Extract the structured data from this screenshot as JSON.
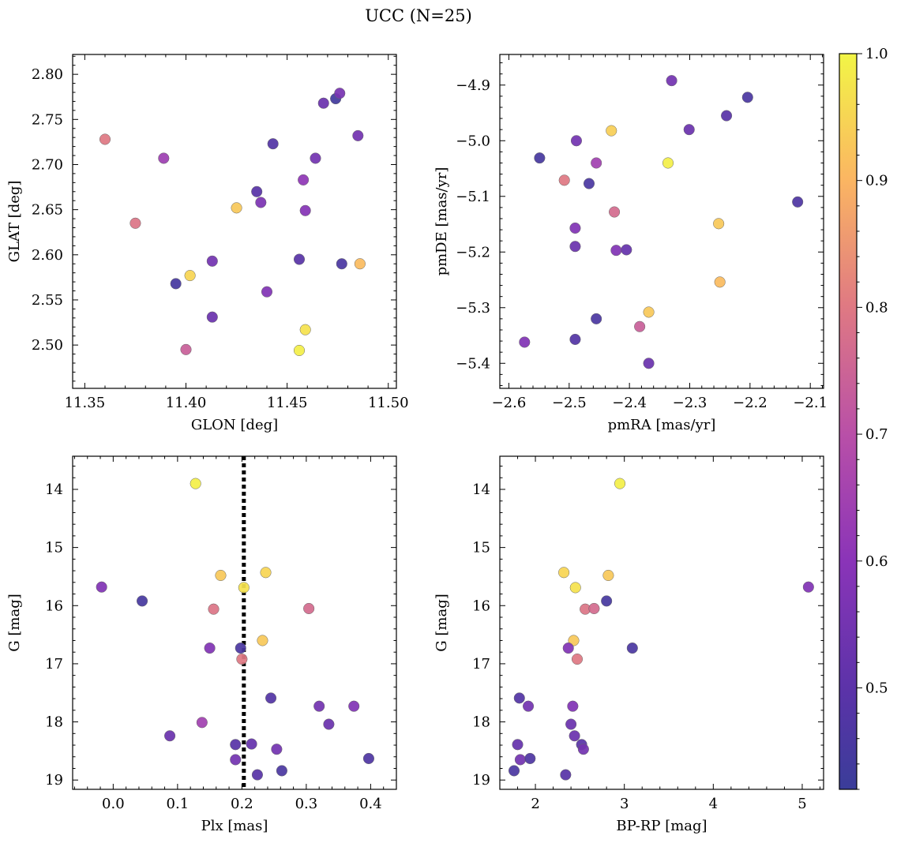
{
  "figure": {
    "title": "UCC (N=25)"
  },
  "colorbar": {
    "min": 0.42,
    "max": 1.0,
    "ticks": [
      0.5,
      0.6,
      0.7,
      0.8,
      0.9,
      1.0
    ],
    "tick_labels": [
      "0.5",
      "0.6",
      "0.7",
      "0.8",
      "0.9",
      "1.0"
    ],
    "colormap": "plasma"
  },
  "chart_data": [
    {
      "type": "scatter",
      "xlabel": "GLON [deg]",
      "ylabel": "GLAT [deg]",
      "xlim": [
        11.344,
        11.504
      ],
      "ylim": [
        2.452,
        2.822
      ],
      "y_inverted": false,
      "xticks": [
        11.35,
        11.4,
        11.45,
        11.5
      ],
      "xtick_labels": [
        "11.35",
        "11.40",
        "11.45",
        "11.50"
      ],
      "yticks": [
        2.5,
        2.55,
        2.6,
        2.65,
        2.7,
        2.75,
        2.8
      ],
      "ytick_labels": [
        "2.50",
        "2.55",
        "2.60",
        "2.65",
        "2.70",
        "2.75",
        "2.80"
      ],
      "points": [
        {
          "x": 11.36,
          "y": 2.728,
          "c": 0.8
        },
        {
          "x": 11.389,
          "y": 2.707,
          "c": 0.64
        },
        {
          "x": 11.375,
          "y": 2.635,
          "c": 0.79
        },
        {
          "x": 11.395,
          "y": 2.568,
          "c": 0.45
        },
        {
          "x": 11.402,
          "y": 2.577,
          "c": 0.95
        },
        {
          "x": 11.4,
          "y": 2.495,
          "c": 0.74
        },
        {
          "x": 11.413,
          "y": 2.593,
          "c": 0.55
        },
        {
          "x": 11.413,
          "y": 2.531,
          "c": 0.53
        },
        {
          "x": 11.425,
          "y": 2.652,
          "c": 0.93
        },
        {
          "x": 11.435,
          "y": 2.67,
          "c": 0.49
        },
        {
          "x": 11.437,
          "y": 2.658,
          "c": 0.57
        },
        {
          "x": 11.44,
          "y": 2.559,
          "c": 0.58
        },
        {
          "x": 11.443,
          "y": 2.723,
          "c": 0.48
        },
        {
          "x": 11.456,
          "y": 2.595,
          "c": 0.49
        },
        {
          "x": 11.456,
          "y": 2.494,
          "c": 0.99
        },
        {
          "x": 11.458,
          "y": 2.683,
          "c": 0.61
        },
        {
          "x": 11.459,
          "y": 2.649,
          "c": 0.59
        },
        {
          "x": 11.459,
          "y": 2.517,
          "c": 0.97
        },
        {
          "x": 11.464,
          "y": 2.707,
          "c": 0.55
        },
        {
          "x": 11.468,
          "y": 2.768,
          "c": 0.53
        },
        {
          "x": 11.474,
          "y": 2.773,
          "c": 0.44
        },
        {
          "x": 11.476,
          "y": 2.779,
          "c": 0.56
        },
        {
          "x": 11.477,
          "y": 2.59,
          "c": 0.46
        },
        {
          "x": 11.485,
          "y": 2.732,
          "c": 0.55
        },
        {
          "x": 11.486,
          "y": 2.59,
          "c": 0.91
        }
      ]
    },
    {
      "type": "scatter",
      "xlabel": "pmRA [mas/yr]",
      "ylabel": "pmDE [mas/yr]",
      "xlim": [
        -2.615,
        -2.078
      ],
      "ylim": [
        -5.445,
        -4.845
      ],
      "y_inverted": false,
      "xticks": [
        -2.6,
        -2.5,
        -2.4,
        -2.3,
        -2.2,
        -2.1
      ],
      "xtick_labels": [
        "−2.6",
        "−2.5",
        "−2.4",
        "−2.3",
        "−2.2",
        "−2.1"
      ],
      "yticks": [
        -5.4,
        -5.3,
        -5.2,
        -5.1,
        -5.0,
        -4.9
      ],
      "ytick_labels": [
        "−5.4",
        "−5.3",
        "−5.2",
        "−5.1",
        "−5.0",
        "−4.9"
      ],
      "points": [
        {
          "x": -2.574,
          "y": -5.362,
          "c": 0.58
        },
        {
          "x": -2.549,
          "y": -5.031,
          "c": 0.45
        },
        {
          "x": -2.508,
          "y": -5.071,
          "c": 0.8
        },
        {
          "x": -2.488,
          "y": -5.0,
          "c": 0.55
        },
        {
          "x": -2.49,
          "y": -5.157,
          "c": 0.58
        },
        {
          "x": -2.49,
          "y": -5.19,
          "c": 0.53
        },
        {
          "x": -2.49,
          "y": -5.357,
          "c": 0.48
        },
        {
          "x": -2.467,
          "y": -5.077,
          "c": 0.46
        },
        {
          "x": -2.455,
          "y": -5.04,
          "c": 0.65
        },
        {
          "x": -2.455,
          "y": -5.32,
          "c": 0.46
        },
        {
          "x": -2.43,
          "y": -4.982,
          "c": 0.94
        },
        {
          "x": -2.425,
          "y": -5.128,
          "c": 0.77
        },
        {
          "x": -2.422,
          "y": -5.197,
          "c": 0.58
        },
        {
          "x": -2.405,
          "y": -5.196,
          "c": 0.52
        },
        {
          "x": -2.383,
          "y": -5.334,
          "c": 0.74
        },
        {
          "x": -2.368,
          "y": -5.308,
          "c": 0.93
        },
        {
          "x": -2.368,
          "y": -5.4,
          "c": 0.53
        },
        {
          "x": -2.336,
          "y": -5.04,
          "c": 0.99
        },
        {
          "x": -2.33,
          "y": -4.892,
          "c": 0.55
        },
        {
          "x": -2.301,
          "y": -4.98,
          "c": 0.53
        },
        {
          "x": -2.252,
          "y": -5.149,
          "c": 0.93
        },
        {
          "x": -2.25,
          "y": -5.254,
          "c": 0.91
        },
        {
          "x": -2.239,
          "y": -4.955,
          "c": 0.49
        },
        {
          "x": -2.204,
          "y": -4.922,
          "c": 0.46
        },
        {
          "x": -2.121,
          "y": -5.11,
          "c": 0.47
        }
      ]
    },
    {
      "type": "scatter",
      "xlabel": "Plx [mas]",
      "ylabel": "G [mag]",
      "xlim": [
        -0.063,
        0.44
      ],
      "ylim": [
        19.16,
        13.43
      ],
      "y_inverted": true,
      "xticks": [
        0.0,
        0.1,
        0.2,
        0.3,
        0.4
      ],
      "xtick_labels": [
        "0.0",
        "0.1",
        "0.2",
        "0.3",
        "0.4"
      ],
      "yticks": [
        14,
        15,
        16,
        17,
        18,
        19
      ],
      "ytick_labels": [
        "14",
        "15",
        "16",
        "17",
        "18",
        "19"
      ],
      "vline": 0.203,
      "points": [
        {
          "x": 0.128,
          "y": 13.9,
          "c": 0.99
        },
        {
          "x": 0.167,
          "y": 15.48,
          "c": 0.93
        },
        {
          "x": 0.237,
          "y": 15.43,
          "c": 0.95
        },
        {
          "x": 0.203,
          "y": 15.69,
          "c": 0.97
        },
        {
          "x": -0.018,
          "y": 15.68,
          "c": 0.58
        },
        {
          "x": 0.045,
          "y": 15.92,
          "c": 0.45
        },
        {
          "x": 0.156,
          "y": 16.06,
          "c": 0.79
        },
        {
          "x": 0.304,
          "y": 16.05,
          "c": 0.77
        },
        {
          "x": 0.232,
          "y": 16.6,
          "c": 0.93
        },
        {
          "x": 0.15,
          "y": 16.73,
          "c": 0.58
        },
        {
          "x": 0.198,
          "y": 16.73,
          "c": 0.46
        },
        {
          "x": 0.2,
          "y": 16.92,
          "c": 0.8
        },
        {
          "x": 0.245,
          "y": 17.59,
          "c": 0.48
        },
        {
          "x": 0.32,
          "y": 17.73,
          "c": 0.55
        },
        {
          "x": 0.374,
          "y": 17.73,
          "c": 0.58
        },
        {
          "x": 0.138,
          "y": 18.01,
          "c": 0.65
        },
        {
          "x": 0.335,
          "y": 18.04,
          "c": 0.53
        },
        {
          "x": 0.088,
          "y": 18.24,
          "c": 0.53
        },
        {
          "x": 0.19,
          "y": 18.39,
          "c": 0.49
        },
        {
          "x": 0.215,
          "y": 18.38,
          "c": 0.52
        },
        {
          "x": 0.254,
          "y": 18.47,
          "c": 0.55
        },
        {
          "x": 0.19,
          "y": 18.65,
          "c": 0.55
        },
        {
          "x": 0.397,
          "y": 18.63,
          "c": 0.47
        },
        {
          "x": 0.262,
          "y": 18.84,
          "c": 0.46
        },
        {
          "x": 0.224,
          "y": 18.91,
          "c": 0.49
        }
      ]
    },
    {
      "type": "scatter",
      "xlabel": "BP-RP [mag]",
      "ylabel": "G [mag]",
      "xlim": [
        1.6,
        5.24
      ],
      "ylim": [
        19.16,
        13.43
      ],
      "y_inverted": true,
      "xticks": [
        2,
        3,
        4,
        5
      ],
      "xtick_labels": [
        "2",
        "3",
        "4",
        "5"
      ],
      "yticks": [
        14,
        15,
        16,
        17,
        18,
        19
      ],
      "ytick_labels": [
        "14",
        "15",
        "16",
        "17",
        "18",
        "19"
      ],
      "points": [
        {
          "x": 2.95,
          "y": 13.9,
          "c": 0.99
        },
        {
          "x": 2.32,
          "y": 15.43,
          "c": 0.95
        },
        {
          "x": 2.82,
          "y": 15.48,
          "c": 0.93
        },
        {
          "x": 2.45,
          "y": 15.69,
          "c": 0.97
        },
        {
          "x": 5.07,
          "y": 15.68,
          "c": 0.58
        },
        {
          "x": 2.8,
          "y": 15.92,
          "c": 0.45
        },
        {
          "x": 2.56,
          "y": 16.06,
          "c": 0.79
        },
        {
          "x": 2.66,
          "y": 16.05,
          "c": 0.77
        },
        {
          "x": 2.43,
          "y": 16.6,
          "c": 0.93
        },
        {
          "x": 2.37,
          "y": 16.73,
          "c": 0.58
        },
        {
          "x": 3.09,
          "y": 16.73,
          "c": 0.46
        },
        {
          "x": 2.47,
          "y": 16.92,
          "c": 0.8
        },
        {
          "x": 1.82,
          "y": 17.59,
          "c": 0.48
        },
        {
          "x": 1.92,
          "y": 17.73,
          "c": 0.55
        },
        {
          "x": 2.42,
          "y": 17.73,
          "c": 0.58
        },
        {
          "x": 2.4,
          "y": 18.04,
          "c": 0.53
        },
        {
          "x": 2.44,
          "y": 18.24,
          "c": 0.53
        },
        {
          "x": 2.52,
          "y": 18.39,
          "c": 0.49
        },
        {
          "x": 1.8,
          "y": 18.39,
          "c": 0.52
        },
        {
          "x": 2.54,
          "y": 18.47,
          "c": 0.55
        },
        {
          "x": 1.83,
          "y": 18.65,
          "c": 0.55
        },
        {
          "x": 1.94,
          "y": 18.63,
          "c": 0.47
        },
        {
          "x": 1.76,
          "y": 18.84,
          "c": 0.46
        },
        {
          "x": 2.34,
          "y": 18.91,
          "c": 0.49
        }
      ]
    }
  ]
}
